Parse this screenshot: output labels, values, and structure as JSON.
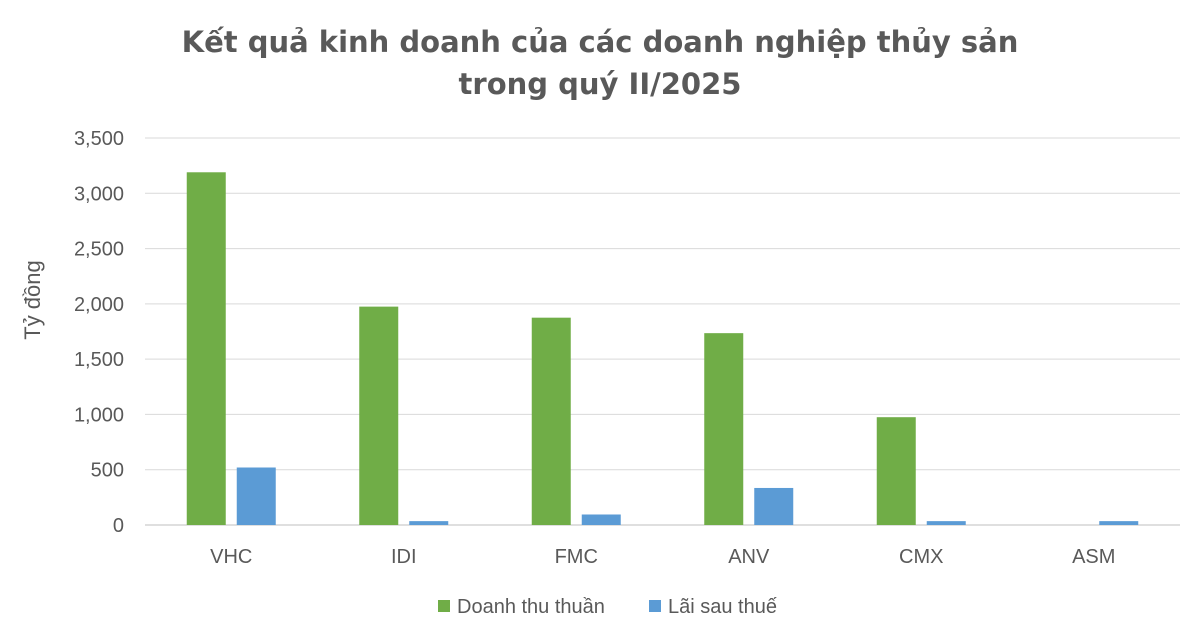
{
  "chart_data": {
    "type": "bar",
    "title_lines": [
      "Kết quả kinh doanh của các doanh nghiệp thủy sản",
      "trong quý II/2025"
    ],
    "xlabel": "",
    "ylabel": "Tỷ đồng",
    "ylim": [
      0,
      3500
    ],
    "yticks": [
      0,
      500,
      1000,
      1500,
      2000,
      2500,
      3000,
      3500
    ],
    "ytick_labels": [
      "0",
      "500",
      "1,000",
      "1,500",
      "2,000",
      "2,500",
      "3,000",
      "3,500"
    ],
    "categories": [
      "VHC",
      "IDI",
      "FMC",
      "ANV",
      "CMX",
      "ASM"
    ],
    "series": [
      {
        "name": "Doanh thu thuần",
        "color": "#70ad47",
        "values": [
          3190,
          1975,
          1875,
          1735,
          975,
          0
        ]
      },
      {
        "name": "Lãi sau thuế",
        "color": "#5b9bd5",
        "values": [
          520,
          35,
          95,
          335,
          35,
          35
        ]
      }
    ],
    "grid": true,
    "legend_position": "bottom"
  }
}
